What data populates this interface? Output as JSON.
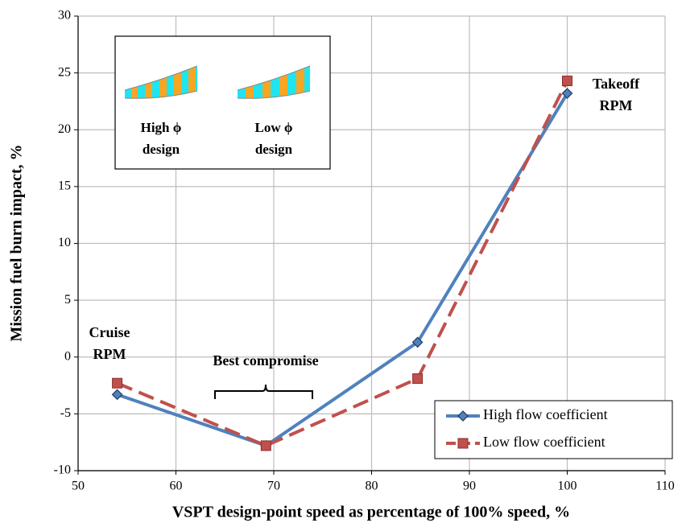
{
  "chart_data": {
    "type": "line",
    "x_label": "VSPT design-point speed as percentage of 100% speed, %",
    "y_label": "Mission fuel burn impact, %",
    "x": [
      54,
      69.2,
      84.7,
      100
    ],
    "series": [
      {
        "name": "High flow coefficient",
        "color": "#4f81bd",
        "marker": "diamond",
        "values": [
          -3.3,
          -7.8,
          1.3,
          23.2
        ]
      },
      {
        "name": "Low flow coefficient",
        "color": "#c0504d",
        "marker": "square",
        "dashed": true,
        "values": [
          -2.3,
          -7.8,
          -1.9,
          24.3
        ]
      }
    ],
    "xlim": [
      50,
      110
    ],
    "xticks": [
      50,
      60,
      70,
      80,
      90,
      100,
      110
    ],
    "ylim": [
      -10,
      30
    ],
    "yticks": [
      -10,
      -5,
      0,
      5,
      10,
      15,
      20,
      25,
      30
    ],
    "grid": true,
    "legend": "lower right",
    "annotations": [
      "Cruise",
      "RPM",
      "Best compromise",
      "Takeoff",
      "RPM"
    ],
    "inset_labels": [
      "High ϕ",
      "design",
      "Low ϕ",
      "design"
    ]
  }
}
